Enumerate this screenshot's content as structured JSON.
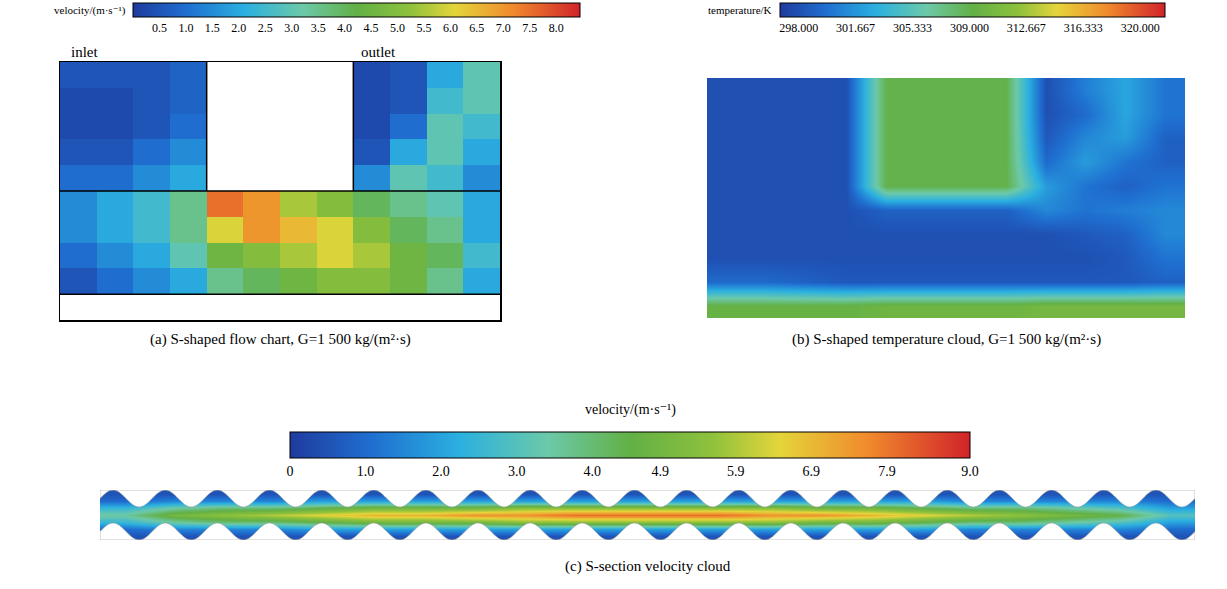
{
  "chart_data": [
    {
      "type": "heatmap",
      "title": "(a) S-shaped flow chart, G=1 500 kg/(m²·s)",
      "annotations": [
        "inlet",
        "outlet"
      ],
      "colorbar": {
        "title": "velocity/(m·s⁻¹)",
        "range": [
          0,
          8.45
        ],
        "ticks": [
          0.5,
          {
            "value": 1,
            "label": "1.0"
          },
          1.5,
          {
            "value": 2,
            "label": "2.0"
          },
          2.5,
          {
            "value": 3,
            "label": "3.0"
          },
          3.5,
          {
            "value": 4,
            "label": "4.0"
          },
          4.5,
          {
            "value": 5,
            "label": "5.0"
          },
          5.5,
          {
            "value": 6,
            "label": "6.0"
          },
          6.5,
          {
            "value": 7,
            "label": "7.0"
          },
          7.5,
          {
            "value": 8,
            "label": "8.0"
          }
        ]
      },
      "x": [
        0.5,
        1.5,
        2.5,
        3.5,
        4.5,
        5.5,
        6.5,
        7.5,
        8.5,
        9.5,
        10.5,
        11.5
      ],
      "y": [
        0.5,
        1.5,
        2.5,
        3.5,
        4.5,
        5.5,
        6.5,
        7.5,
        8.5,
        9.5
      ],
      "z": [
        [
          null,
          null,
          null,
          null,
          null,
          null,
          null,
          null,
          null,
          null,
          null,
          null
        ],
        [
          0.5,
          1.0,
          1.5,
          2.0,
          3.5,
          4.0,
          4.5,
          5.0,
          5.0,
          4.5,
          3.5,
          2.0
        ],
        [
          1.0,
          1.5,
          2.0,
          3.0,
          4.5,
          5.0,
          5.5,
          6.0,
          5.5,
          4.5,
          4.0,
          2.5
        ],
        [
          1.5,
          2.0,
          2.5,
          3.5,
          6.0,
          7.0,
          6.5,
          6.0,
          5.0,
          4.0,
          3.5,
          2.0
        ],
        [
          1.5,
          2.0,
          2.5,
          3.5,
          7.5,
          7.0,
          5.5,
          5.0,
          4.0,
          3.5,
          3.0,
          2.0
        ],
        [
          1.0,
          1.0,
          1.5,
          2.0,
          null,
          null,
          null,
          null,
          1.5,
          3.0,
          2.5,
          1.5
        ],
        [
          0.5,
          0.5,
          1.0,
          1.5,
          null,
          null,
          null,
          null,
          0.5,
          2.0,
          3.0,
          2.0
        ],
        [
          0.3,
          0.3,
          0.5,
          1.0,
          null,
          null,
          null,
          null,
          0.3,
          1.0,
          3.0,
          2.5
        ],
        [
          0.3,
          0.3,
          0.5,
          0.8,
          null,
          null,
          null,
          null,
          0.3,
          0.5,
          2.5,
          3.0
        ],
        [
          0.5,
          0.5,
          0.5,
          0.8,
          null,
          null,
          null,
          null,
          0.3,
          0.5,
          2.0,
          3.0
        ]
      ],
      "xlim": [
        0,
        12
      ],
      "ylim": [
        0,
        10
      ],
      "tick_labels": false
    },
    {
      "type": "heatmap",
      "title": "(b) S-shaped temperature cloud, G=1 500 kg/(m²·s)",
      "colorbar": {
        "title": "temperature/K",
        "range": [
          296.8,
          321.6
        ],
        "ticks": [
          {
            "value": 298,
            "label": "298.000"
          },
          {
            "value": 301.667,
            "label": "301.667"
          },
          {
            "value": 305.333,
            "label": "305.333"
          },
          {
            "value": 309,
            "label": "309.000"
          },
          {
            "value": 312.667,
            "label": "312.667"
          },
          {
            "value": 316.333,
            "label": "316.333"
          },
          {
            "value": 320,
            "label": "320.000"
          }
        ]
      },
      "x": [
        0.5,
        1.5,
        2.5,
        3.5,
        4.5,
        5.5,
        6.5,
        7.5,
        8.5,
        9.5,
        10.5,
        11.5
      ],
      "y": [
        0.5,
        1.5,
        2.5,
        3.5,
        4.5,
        5.5,
        6.5,
        7.5,
        8.5,
        9.5
      ],
      "z": [
        [
          309.5,
          309.5,
          309.5,
          309.5,
          310,
          310,
          310,
          310,
          310.5,
          310.5,
          310.5,
          310.5
        ],
        [
          299.5,
          299.5,
          299,
          298.5,
          298.5,
          298.5,
          298.5,
          298.5,
          298.5,
          298.5,
          298.5,
          299
        ],
        [
          298,
          298,
          298,
          298,
          298,
          298,
          298,
          298,
          298,
          298,
          298.5,
          300
        ],
        [
          298,
          298,
          298,
          298,
          298,
          298,
          298,
          298,
          298,
          298.5,
          299,
          301
        ],
        [
          298,
          298,
          298,
          298,
          299,
          299,
          299,
          299,
          301,
          300,
          300.5,
          301
        ],
        [
          298,
          298,
          298,
          298,
          309,
          309,
          309,
          309,
          302,
          300,
          299,
          300
        ],
        [
          298,
          298,
          298,
          298,
          309,
          309,
          309,
          309,
          299.5,
          302,
          300,
          299
        ],
        [
          298,
          298,
          298,
          298,
          309,
          309,
          309,
          309,
          298.5,
          301,
          302,
          299
        ],
        [
          298,
          298,
          298,
          298,
          309,
          309,
          309,
          309,
          298,
          299.5,
          302.5,
          300
        ],
        [
          298,
          298,
          298,
          298,
          309,
          309,
          309,
          309,
          298,
          300.5,
          302.5,
          300
        ]
      ],
      "xlim": [
        0,
        12
      ],
      "ylim": [
        0,
        10
      ],
      "tick_labels": false
    },
    {
      "type": "heatmap",
      "title": "(c) S-section velocity cloud",
      "colorbar": {
        "title": "velocity/(m·s⁻¹)",
        "range": [
          0,
          9
        ],
        "ticks": [
          0,
          {
            "value": 1,
            "label": "1.0"
          },
          {
            "value": 2,
            "label": "2.0"
          },
          {
            "value": 3,
            "label": "3.0"
          },
          {
            "value": 4,
            "label": "4.0"
          },
          4.9,
          5.9,
          6.9,
          7.9,
          {
            "value": 9,
            "label": "9.0"
          }
        ]
      },
      "x": [
        0,
        1,
        2,
        3,
        4,
        5,
        6,
        7,
        8,
        9,
        10,
        11,
        12,
        13,
        14,
        15,
        16,
        17,
        18,
        19,
        20,
        21
      ],
      "y": [
        0,
        1,
        2,
        3,
        4,
        5,
        6
      ],
      "z": [
        [
          0.5,
          0.5,
          0.5,
          0.5,
          0.5,
          0.5,
          0.5,
          0.5,
          0.5,
          0.5,
          0.5,
          0.5,
          0.5,
          0.5,
          0.5,
          0.5,
          0.5,
          0.5,
          0.5,
          0.5,
          0.5,
          0.5
        ],
        [
          1.0,
          1.5,
          1.5,
          1.5,
          2.0,
          2.0,
          2.0,
          2.0,
          2.0,
          2.0,
          2.0,
          2.0,
          2.0,
          2.0,
          2.0,
          2.0,
          2.0,
          1.5,
          1.5,
          1.5,
          1.5,
          1.0
        ],
        [
          2.5,
          3.5,
          4.0,
          4.0,
          4.5,
          5.0,
          5.0,
          5.0,
          5.5,
          5.5,
          5.5,
          5.5,
          5.5,
          5.5,
          5.0,
          5.0,
          4.5,
          4.0,
          4.0,
          3.5,
          3.0,
          2.0
        ],
        [
          3.5,
          5.0,
          5.5,
          6.0,
          6.5,
          7.0,
          7.0,
          7.5,
          7.5,
          8.0,
          8.0,
          8.0,
          8.0,
          7.5,
          7.5,
          7.0,
          6.5,
          6.0,
          5.5,
          5.0,
          4.5,
          3.0
        ],
        [
          2.5,
          3.5,
          4.0,
          4.0,
          4.5,
          5.0,
          5.0,
          5.0,
          5.5,
          5.5,
          5.5,
          5.5,
          5.5,
          5.5,
          5.0,
          5.0,
          4.5,
          4.0,
          4.0,
          3.5,
          3.0,
          2.0
        ],
        [
          1.0,
          1.5,
          1.5,
          1.5,
          2.0,
          2.0,
          2.0,
          2.0,
          2.0,
          2.0,
          2.0,
          2.0,
          2.0,
          2.0,
          2.0,
          2.0,
          2.0,
          1.5,
          1.5,
          1.5,
          1.5,
          1.0
        ],
        [
          0.5,
          0.5,
          0.5,
          0.5,
          0.5,
          0.5,
          0.5,
          0.5,
          0.5,
          0.5,
          0.5,
          0.5,
          0.5,
          0.5,
          0.5,
          0.5,
          0.5,
          0.5,
          0.5,
          0.5,
          0.5,
          0.5
        ]
      ],
      "xlim": [
        -0.5,
        21.5
      ],
      "ylim": [
        -0.5,
        6.5
      ],
      "tick_labels": false
    }
  ]
}
